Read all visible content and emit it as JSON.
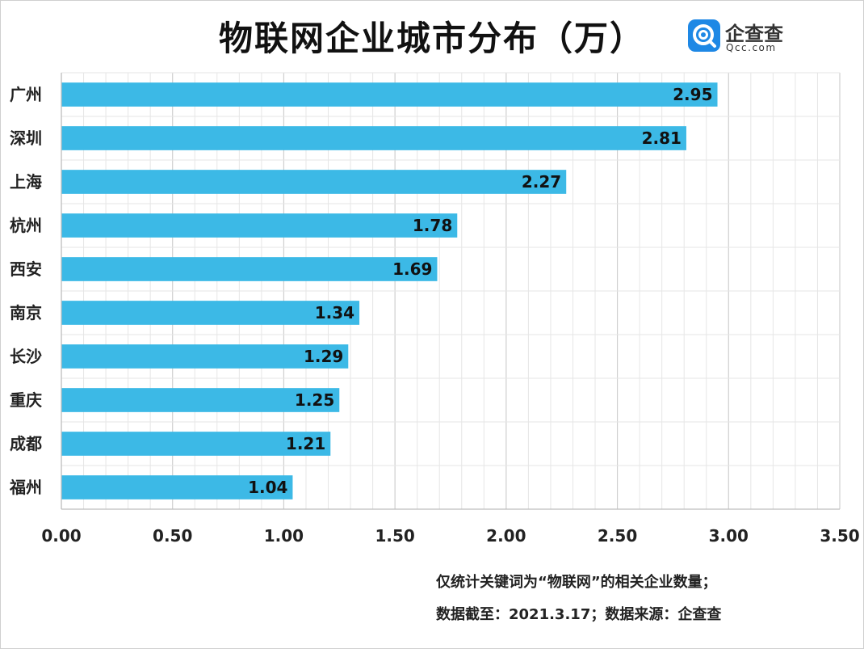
{
  "chart_data": {
    "type": "bar",
    "orientation": "horizontal",
    "title": "物联网企业城市分布（万）",
    "categories": [
      "广州",
      "深圳",
      "上海",
      "杭州",
      "西安",
      "南京",
      "长沙",
      "重庆",
      "成都",
      "福州"
    ],
    "values": [
      2.95,
      2.81,
      2.27,
      1.78,
      1.69,
      1.34,
      1.29,
      1.25,
      1.21,
      1.04
    ],
    "value_labels": [
      "2.95",
      "2.81",
      "2.27",
      "1.78",
      "1.69",
      "1.34",
      "1.29",
      "1.25",
      "1.21",
      "1.04"
    ],
    "xlim": [
      0,
      3.5
    ],
    "x_ticks": [
      0,
      0.5,
      1,
      1.5,
      2,
      2.5,
      3,
      3.5
    ],
    "x_tick_labels": [
      "0.00",
      "0.50",
      "1.00",
      "1.50",
      "2.00",
      "2.50",
      "3.00",
      "3.50"
    ],
    "xlabel": "",
    "ylabel": "",
    "grid": true,
    "bar_color": "#3cb9e6",
    "grid_color": "#d9d9d9"
  },
  "logo": {
    "name": "企查查",
    "sub": "Qcc.com",
    "color": "#1e88e5"
  },
  "notes": {
    "line1": "仅统计关键词为“物联网”的相关企业数量；",
    "line2": "数据截至：2021.3.17；数据来源：企查查"
  }
}
